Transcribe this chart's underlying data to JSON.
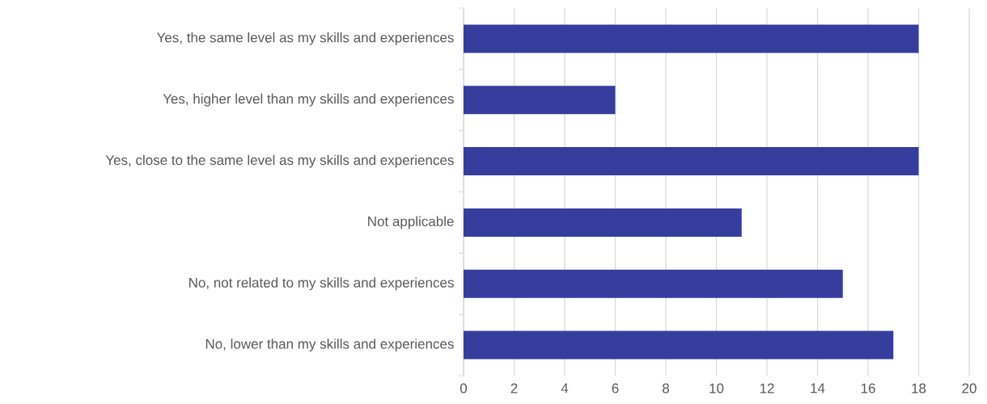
{
  "chart_data": {
    "type": "bar",
    "orientation": "horizontal",
    "categories": [
      "Yes, the same level as my skills and experiences",
      "Yes, higher level than my skills and experiences",
      "Yes, close to the same level as my skills and experiences",
      "Not applicable",
      "No, not related to my skills and experiences",
      "No, lower than my skills and experiences"
    ],
    "values": [
      18,
      6,
      18,
      11,
      15,
      17
    ],
    "color": "#353e9c",
    "xlim": [
      0,
      20
    ],
    "xticks": [
      0,
      2,
      4,
      6,
      8,
      10,
      12,
      14,
      16,
      18,
      20
    ],
    "grid": "x"
  }
}
